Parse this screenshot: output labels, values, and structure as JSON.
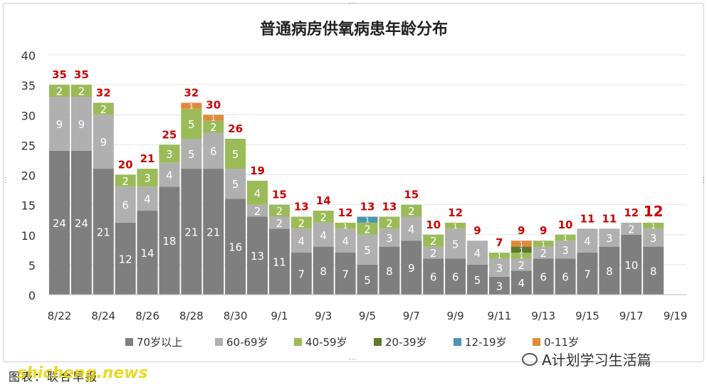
{
  "chart_data": {
    "type": "bar",
    "stacked": true,
    "title": "普通病房供氧病患年龄分布",
    "categories": [
      "8/22",
      "8/23",
      "8/24",
      "8/25",
      "8/26",
      "8/27",
      "8/28",
      "8/29",
      "8/30",
      "8/31",
      "9/1",
      "9/2",
      "9/3",
      "9/4",
      "9/5",
      "9/6",
      "9/7",
      "9/8",
      "9/9",
      "9/10",
      "9/11",
      "9/12",
      "9/13",
      "9/14",
      "9/15",
      "9/16",
      "9/17",
      "9/18",
      "9/19"
    ],
    "x_tick_labels": [
      "8/22",
      "8/24",
      "8/26",
      "8/28",
      "8/30",
      "9/1",
      "9/3",
      "9/5",
      "9/7",
      "9/9",
      "9/11",
      "9/13",
      "9/15",
      "9/17",
      "9/19"
    ],
    "y_ticks": [
      "0",
      "5",
      "10",
      "15",
      "20",
      "25",
      "30",
      "35",
      "40"
    ],
    "ylim": [
      0,
      40
    ],
    "grid": true,
    "legend_position": "bottom",
    "series": [
      {
        "name": "70岁以上",
        "color": "#7f7f7f",
        "values": [
          24,
          24,
          21,
          12,
          14,
          18,
          21,
          21,
          16,
          13,
          11,
          7,
          8,
          7,
          5,
          8,
          9,
          6,
          6,
          5,
          3,
          4,
          6,
          6,
          7,
          8,
          10,
          8,
          null
        ]
      },
      {
        "name": "60-69岁",
        "color": "#b0b0b0",
        "values": [
          9,
          9,
          9,
          6,
          4,
          4,
          5,
          6,
          5,
          2,
          2,
          4,
          4,
          4,
          5,
          3,
          4,
          2,
          5,
          4,
          3,
          2,
          2,
          3,
          4,
          3,
          2,
          3,
          null
        ]
      },
      {
        "name": "40-59岁",
        "color": "#9bbb59",
        "values": [
          2,
          2,
          2,
          2,
          3,
          3,
          5,
          2,
          5,
          4,
          2,
          2,
          2,
          1,
          2,
          2,
          2,
          2,
          1,
          0,
          1,
          1,
          1,
          1,
          0,
          0,
          0,
          1,
          null
        ]
      },
      {
        "name": "20-39岁",
        "color": "#5e7a2e",
        "values": [
          0,
          0,
          0,
          0,
          0,
          0,
          0,
          0,
          0,
          0,
          0,
          0,
          0,
          0,
          0,
          0,
          0,
          0,
          0,
          0,
          0,
          1,
          0,
          0,
          0,
          0,
          0,
          0,
          null
        ]
      },
      {
        "name": "12-19岁",
        "color": "#4a96b0",
        "values": [
          0,
          0,
          0,
          0,
          0,
          0,
          0,
          0,
          0,
          0,
          0,
          0,
          0,
          0,
          1,
          0,
          0,
          0,
          0,
          0,
          0,
          0,
          0,
          0,
          0,
          0,
          0,
          0,
          null
        ]
      },
      {
        "name": "0-11岁",
        "color": "#e08a3c",
        "values": [
          0,
          0,
          0,
          0,
          0,
          0,
          1,
          1,
          0,
          0,
          0,
          0,
          0,
          0,
          0,
          0,
          0,
          0,
          0,
          0,
          0,
          1,
          0,
          0,
          0,
          0,
          0,
          0,
          null
        ]
      }
    ],
    "totals": [
      35,
      35,
      32,
      20,
      21,
      25,
      32,
      30,
      26,
      19,
      15,
      13,
      14,
      12,
      13,
      13,
      15,
      10,
      12,
      9,
      7,
      9,
      9,
      10,
      11,
      11,
      12,
      12,
      null
    ],
    "segment_labels": [
      [
        "24",
        "9",
        "2",
        "",
        "",
        ""
      ],
      [
        "24",
        "9",
        "2",
        "",
        "",
        ""
      ],
      [
        "21",
        "9",
        "2",
        "",
        "",
        ""
      ],
      [
        "12",
        "6",
        "2",
        "",
        "",
        ""
      ],
      [
        "14",
        "4",
        "3",
        "",
        "",
        ""
      ],
      [
        "18",
        "4",
        "3",
        "",
        "",
        ""
      ],
      [
        "21",
        "5",
        "5",
        "",
        "",
        "1"
      ],
      [
        "21",
        "6",
        "2",
        "",
        "",
        "1"
      ],
      [
        "16",
        "5",
        "5",
        "",
        "",
        ""
      ],
      [
        "13",
        "2",
        "4",
        "",
        "",
        ""
      ],
      [
        "11",
        "2",
        "2",
        "",
        "",
        ""
      ],
      [
        "7",
        "4",
        "2",
        "",
        "",
        ""
      ],
      [
        "8",
        "4",
        "2",
        "",
        "",
        ""
      ],
      [
        "7",
        "4",
        "1",
        "",
        "",
        ""
      ],
      [
        "5",
        "5",
        "2",
        "",
        "1",
        ""
      ],
      [
        "8",
        "3",
        "2",
        "",
        "",
        ""
      ],
      [
        "9",
        "4",
        "2",
        "",
        "",
        ""
      ],
      [
        "6",
        "2",
        "2",
        "",
        "",
        ""
      ],
      [
        "6",
        "5",
        "1",
        "",
        "",
        ""
      ],
      [
        "5",
        "4",
        "",
        "",
        "",
        ""
      ],
      [
        "3",
        "3",
        "1",
        "",
        "",
        ""
      ],
      [
        "4",
        "2",
        "1",
        "1",
        "",
        "1"
      ],
      [
        "6",
        "2",
        "1",
        "",
        "",
        ""
      ],
      [
        "6",
        "3",
        "1",
        "",
        "",
        ""
      ],
      [
        "7",
        "4",
        "",
        "",
        "",
        ""
      ],
      [
        "8",
        "3",
        "",
        "",
        "",
        ""
      ],
      [
        "10",
        "2",
        "",
        "",
        "",
        ""
      ],
      [
        "8",
        "3",
        "1",
        "",
        "",
        ""
      ],
      [
        "",
        "",
        "",
        "",
        "",
        ""
      ]
    ],
    "total_color": "#cc0000"
  },
  "footer": {
    "source": "图表：联合早报",
    "watermark": "shicheng.news",
    "wechat": "A计划学习生活篇"
  }
}
